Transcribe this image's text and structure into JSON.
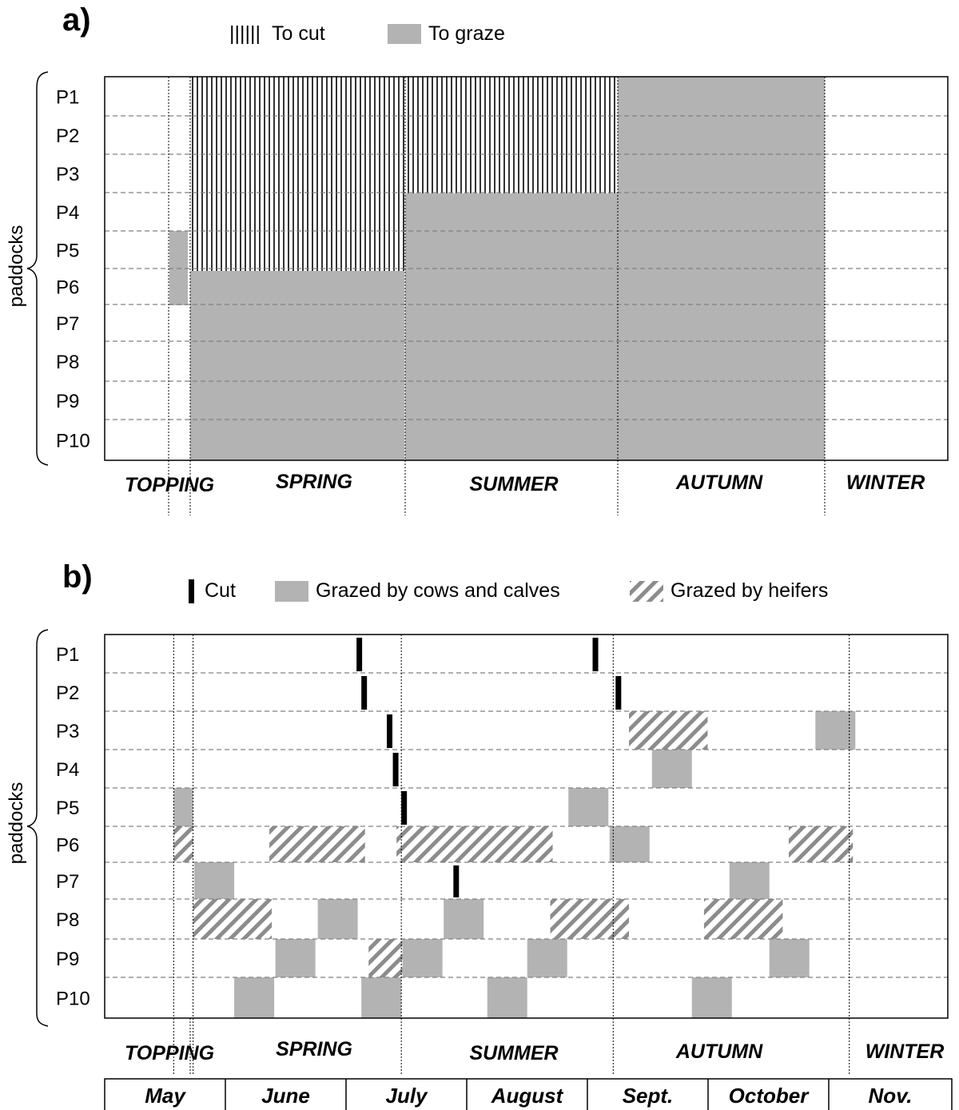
{
  "panel_a": {
    "label": "a)",
    "legend": {
      "cut": "To cut",
      "cut_marker": "||||||",
      "graze": "To graze"
    },
    "y_axis_label": "paddocks",
    "paddocks": [
      "P1",
      "P2",
      "P3",
      "P4",
      "P5",
      "P6",
      "P7",
      "P8",
      "P9",
      "P10"
    ],
    "seasons": [
      "TOPPING",
      "SPRING",
      "SUMMER",
      "AUTUMN",
      "WINTER"
    ],
    "plan": [
      {
        "season": "TOPPING",
        "graze": [
          "P5",
          "P6"
        ]
      },
      {
        "season": "SPRING",
        "cut": [
          "P1",
          "P2",
          "P3",
          "P4",
          "P5"
        ],
        "graze": [
          "P6",
          "P7",
          "P8",
          "P9",
          "P10"
        ]
      },
      {
        "season": "SUMMER",
        "cut": [
          "P1",
          "P2",
          "P3"
        ],
        "graze": [
          "P4",
          "P5",
          "P6",
          "P7",
          "P8",
          "P9",
          "P10"
        ]
      },
      {
        "season": "AUTUMN",
        "graze": [
          "P1",
          "P2",
          "P3",
          "P4",
          "P5",
          "P6",
          "P7",
          "P8",
          "P9",
          "P10"
        ]
      }
    ]
  },
  "panel_b": {
    "label": "b)",
    "legend": {
      "cut": "Cut",
      "cows": "Grazed by cows and calves",
      "heifers": "Grazed by heifers"
    },
    "y_axis_label": "paddocks",
    "paddocks": [
      "P1",
      "P2",
      "P3",
      "P4",
      "P5",
      "P6",
      "P7",
      "P8",
      "P9",
      "P10"
    ],
    "seasons": [
      "TOPPING",
      "SPRING",
      "SUMMER",
      "AUTUMN",
      "WINTER"
    ],
    "months": [
      "May",
      "June",
      "July",
      "August",
      "Sept.",
      "October",
      "Nov."
    ],
    "events": [
      {
        "paddock": "P1",
        "type": "cut",
        "start": 2.08
      },
      {
        "paddock": "P1",
        "type": "cut",
        "start": 4.03
      },
      {
        "paddock": "P2",
        "type": "cut",
        "start": 2.12
      },
      {
        "paddock": "P2",
        "type": "cut",
        "start": 4.22
      },
      {
        "paddock": "P3",
        "type": "cut",
        "start": 2.33
      },
      {
        "paddock": "P3",
        "type": "heifers",
        "start": 4.33,
        "end": 4.98
      },
      {
        "paddock": "P3",
        "type": "cows",
        "start": 5.87,
        "end": 6.2
      },
      {
        "paddock": "P4",
        "type": "cut",
        "start": 2.38
      },
      {
        "paddock": "P4",
        "type": "cows",
        "start": 4.52,
        "end": 4.85
      },
      {
        "paddock": "P5",
        "type": "cows",
        "start": 0.57,
        "end": 0.73
      },
      {
        "paddock": "P5",
        "type": "cut",
        "start": 2.45
      },
      {
        "paddock": "P5",
        "type": "cows",
        "start": 3.83,
        "end": 4.16
      },
      {
        "paddock": "P6",
        "type": "heifers",
        "start": 0.57,
        "end": 0.73
      },
      {
        "paddock": "P6",
        "type": "heifers",
        "start": 1.36,
        "end": 2.15
      },
      {
        "paddock": "P6",
        "type": "heifers",
        "start": 2.41,
        "end": 3.7
      },
      {
        "paddock": "P6",
        "type": "cows",
        "start": 4.17,
        "end": 4.5
      },
      {
        "paddock": "P6",
        "type": "heifers",
        "start": 5.65,
        "end": 6.18
      },
      {
        "paddock": "P7",
        "type": "cows",
        "start": 0.74,
        "end": 1.07
      },
      {
        "paddock": "P7",
        "type": "cut",
        "start": 2.88
      },
      {
        "paddock": "P7",
        "type": "cows",
        "start": 5.16,
        "end": 5.49
      },
      {
        "paddock": "P8",
        "type": "heifers",
        "start": 0.73,
        "end": 1.38
      },
      {
        "paddock": "P8",
        "type": "cows",
        "start": 1.76,
        "end": 2.09
      },
      {
        "paddock": "P8",
        "type": "cows",
        "start": 2.8,
        "end": 3.13
      },
      {
        "paddock": "P8",
        "type": "heifers",
        "start": 3.68,
        "end": 4.33
      },
      {
        "paddock": "P8",
        "type": "heifers",
        "start": 4.95,
        "end": 5.6
      },
      {
        "paddock": "P9",
        "type": "cows",
        "start": 1.41,
        "end": 1.74
      },
      {
        "paddock": "P9",
        "type": "heifers",
        "start": 2.18,
        "end": 2.46
      },
      {
        "paddock": "P9",
        "type": "cows",
        "start": 2.46,
        "end": 2.79
      },
      {
        "paddock": "P9",
        "type": "cows",
        "start": 3.49,
        "end": 3.82
      },
      {
        "paddock": "P9",
        "type": "cows",
        "start": 5.49,
        "end": 5.82
      },
      {
        "paddock": "P10",
        "type": "cows",
        "start": 1.07,
        "end": 1.4
      },
      {
        "paddock": "P10",
        "type": "cows",
        "start": 2.12,
        "end": 2.45
      },
      {
        "paddock": "P10",
        "type": "cows",
        "start": 3.16,
        "end": 3.49
      },
      {
        "paddock": "P10",
        "type": "cows",
        "start": 4.85,
        "end": 5.18
      }
    ],
    "season_boundaries": [
      0.57,
      0.73,
      2.45,
      4.2,
      6.15
    ]
  },
  "colors": {
    "graze": "#b3b3b3",
    "cut": "#000000",
    "hatch": "#8c8c8c",
    "grid": "#808080"
  }
}
